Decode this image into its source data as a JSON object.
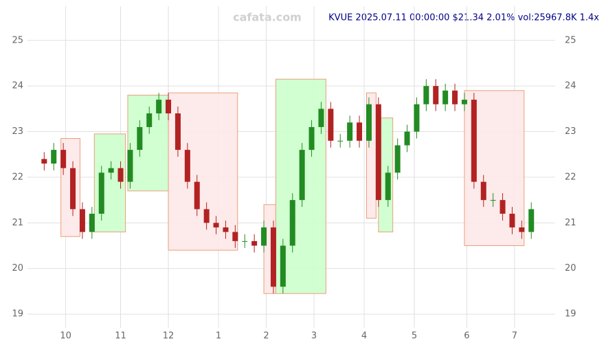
{
  "chart_data": {
    "type": "candlestick",
    "title": "KVUE 2025.07.11 00:00:00 $21.34 2.01% vol:25967.8K 1.4x",
    "watermark": "cafata.com",
    "x": [
      -8,
      -4,
      0,
      4,
      8,
      12,
      16,
      20,
      24,
      28,
      32,
      36,
      40,
      44,
      48,
      52,
      56,
      60,
      64,
      68,
      72,
      76,
      80,
      84,
      88,
      92,
      96,
      100,
      104,
      108,
      112,
      116,
      120,
      124,
      128,
      132,
      136,
      140,
      144,
      148,
      152,
      156,
      160,
      164,
      168,
      172,
      176,
      180,
      184,
      188,
      192,
      196
    ],
    "open": [
      22.4,
      22.3,
      22.6,
      22.2,
      21.3,
      20.8,
      21.2,
      22.1,
      22.2,
      21.9,
      22.6,
      23.1,
      23.4,
      23.7,
      23.4,
      22.6,
      21.9,
      21.3,
      21.0,
      20.9,
      20.8,
      20.6,
      20.6,
      20.5,
      20.9,
      19.6,
      20.5,
      21.5,
      22.6,
      23.1,
      23.5,
      22.8,
      22.8,
      23.2,
      22.8,
      23.6,
      21.5,
      22.1,
      22.7,
      23.0,
      23.6,
      24.0,
      23.6,
      23.9,
      23.6,
      23.7,
      21.9,
      21.5,
      21.5,
      21.2,
      20.9,
      20.8
    ],
    "high": [
      22.55,
      22.75,
      22.75,
      22.35,
      21.45,
      21.35,
      22.25,
      22.35,
      22.35,
      22.75,
      23.25,
      23.55,
      23.85,
      23.85,
      23.55,
      22.75,
      22.05,
      21.45,
      21.15,
      21.05,
      20.95,
      20.75,
      20.75,
      21.05,
      21.05,
      20.65,
      21.65,
      22.75,
      23.25,
      23.65,
      23.65,
      22.95,
      23.35,
      23.35,
      23.75,
      23.75,
      22.25,
      22.85,
      23.15,
      23.75,
      24.15,
      24.15,
      24.05,
      24.05,
      23.85,
      23.85,
      22.05,
      21.65,
      21.65,
      21.35,
      21.05,
      21.45
    ],
    "low": [
      22.15,
      22.15,
      22.05,
      21.15,
      20.65,
      20.65,
      21.05,
      21.95,
      21.75,
      21.75,
      22.45,
      22.95,
      23.25,
      23.25,
      22.45,
      21.75,
      21.15,
      20.85,
      20.75,
      20.65,
      20.45,
      20.45,
      20.35,
      20.35,
      19.45,
      19.45,
      20.35,
      21.35,
      22.45,
      22.95,
      22.65,
      22.65,
      22.65,
      22.65,
      22.65,
      21.35,
      21.35,
      21.95,
      22.55,
      22.85,
      23.45,
      23.45,
      23.45,
      23.45,
      23.45,
      21.75,
      21.35,
      21.35,
      21.05,
      20.75,
      20.65,
      20.65
    ],
    "close": [
      22.3,
      22.6,
      22.2,
      21.3,
      20.8,
      21.2,
      22.1,
      22.2,
      21.9,
      22.6,
      23.1,
      23.4,
      23.7,
      23.4,
      22.6,
      21.9,
      21.3,
      21.0,
      20.9,
      20.8,
      20.6,
      20.6,
      20.5,
      20.9,
      19.6,
      20.5,
      21.5,
      22.6,
      23.1,
      23.5,
      22.8,
      22.8,
      23.2,
      22.8,
      23.6,
      21.5,
      22.1,
      22.7,
      23.0,
      23.6,
      24.0,
      23.6,
      23.9,
      23.6,
      23.7,
      21.9,
      21.5,
      21.5,
      21.2,
      20.9,
      20.8,
      21.3
    ],
    "up_color": "#228b22",
    "down_color": "#b22222",
    "zones": [
      {
        "x": [
          -1,
          7
        ],
        "y": [
          20.7,
          22.85
        ],
        "color": "#fde8e8"
      },
      {
        "x": [
          13,
          26
        ],
        "y": [
          20.8,
          22.95
        ],
        "color": "#ccffcc"
      },
      {
        "x": [
          27,
          44
        ],
        "y": [
          21.7,
          23.8
        ],
        "color": "#ccffcc"
      },
      {
        "x": [
          44,
          73
        ],
        "y": [
          20.4,
          23.85
        ],
        "color": "#fde8e8"
      },
      {
        "x": [
          84,
          89
        ],
        "y": [
          19.45,
          21.4
        ],
        "color": "#fde8e8"
      },
      {
        "x": [
          89,
          110
        ],
        "y": [
          19.45,
          24.15
        ],
        "color": "#ccffcc"
      },
      {
        "x": [
          127,
          131
        ],
        "y": [
          21.1,
          23.85
        ],
        "color": "#fde8e8"
      },
      {
        "x": [
          132,
          138
        ],
        "y": [
          20.8,
          23.3
        ],
        "color": "#ccffcc"
      },
      {
        "x": [
          168,
          193
        ],
        "y": [
          20.5,
          23.9
        ],
        "color": "#fde8e8"
      }
    ],
    "zone_border": "#e9a07a",
    "xlim": [
      -15,
      206
    ],
    "ylim": [
      18.7,
      25.75
    ],
    "xticks": [
      {
        "value": 1,
        "label": "10"
      },
      {
        "value": 24,
        "label": "11"
      },
      {
        "value": 44,
        "label": "12"
      },
      {
        "value": 65,
        "label": "1"
      },
      {
        "value": 85,
        "label": "2"
      },
      {
        "value": 105,
        "label": "3"
      },
      {
        "value": 126,
        "label": "4"
      },
      {
        "value": 147,
        "label": "5"
      },
      {
        "value": 169,
        "label": "6"
      },
      {
        "value": 189,
        "label": "7"
      }
    ],
    "yticks": [
      19,
      20,
      21,
      22,
      23,
      24,
      25
    ],
    "grid": true
  }
}
